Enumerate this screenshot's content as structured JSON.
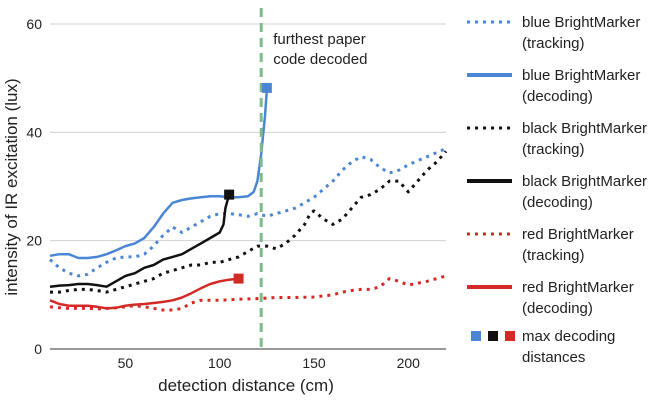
{
  "chart_data": {
    "type": "line",
    "title": "",
    "xlabel": "detection distance (cm)",
    "ylabel": "intensity of IR excitation (lux)",
    "xlim": [
      10,
      220
    ],
    "ylim": [
      0,
      60
    ],
    "x_ticks": [
      50,
      100,
      150,
      200
    ],
    "y_ticks": [
      0,
      20,
      40,
      60
    ],
    "grid": "horizontal",
    "legend_position": "right",
    "reference_line": {
      "x": 122,
      "label_lines": [
        "furthest paper",
        "code decoded"
      ],
      "color": "#7dbb8a"
    },
    "series": [
      {
        "key": "blue_tracking",
        "label_lines": [
          "blue BrightMarker",
          "(tracking)"
        ],
        "color": "#4a86d4",
        "style": "dotted",
        "points": [
          [
            10,
            16.5
          ],
          [
            15,
            15
          ],
          [
            20,
            14
          ],
          [
            25,
            13.5
          ],
          [
            30,
            13.8
          ],
          [
            35,
            15
          ],
          [
            40,
            16
          ],
          [
            45,
            16.8
          ],
          [
            50,
            17
          ],
          [
            55,
            17
          ],
          [
            60,
            17.5
          ],
          [
            65,
            19
          ],
          [
            70,
            21
          ],
          [
            75,
            22.5
          ],
          [
            80,
            21.5
          ],
          [
            85,
            22.5
          ],
          [
            90,
            23.5
          ],
          [
            95,
            24.5
          ],
          [
            100,
            25
          ],
          [
            105,
            25
          ],
          [
            110,
            24.8
          ],
          [
            115,
            24.5
          ],
          [
            120,
            25
          ],
          [
            125,
            24.5
          ],
          [
            130,
            25
          ],
          [
            135,
            25.5
          ],
          [
            140,
            26
          ],
          [
            145,
            27
          ],
          [
            150,
            28
          ],
          [
            155,
            29.5
          ],
          [
            160,
            31
          ],
          [
            165,
            33
          ],
          [
            170,
            34.5
          ],
          [
            175,
            35.5
          ],
          [
            180,
            35
          ],
          [
            185,
            33.5
          ],
          [
            190,
            32.5
          ],
          [
            195,
            33
          ],
          [
            200,
            34
          ],
          [
            210,
            35.5
          ],
          [
            220,
            37
          ]
        ]
      },
      {
        "key": "blue_decoding",
        "label_lines": [
          "blue BrightMarker",
          "(decoding)"
        ],
        "color": "#4a86d4",
        "style": "solid",
        "points": [
          [
            10,
            17.2
          ],
          [
            15,
            17.5
          ],
          [
            20,
            17.5
          ],
          [
            25,
            16.8
          ],
          [
            30,
            16.8
          ],
          [
            35,
            17
          ],
          [
            40,
            17.5
          ],
          [
            45,
            18.2
          ],
          [
            50,
            19
          ],
          [
            55,
            19.5
          ],
          [
            60,
            20.5
          ],
          [
            65,
            22.5
          ],
          [
            70,
            25
          ],
          [
            75,
            27
          ],
          [
            80,
            27.5
          ],
          [
            85,
            27.8
          ],
          [
            90,
            28
          ],
          [
            95,
            28.2
          ],
          [
            100,
            28.2
          ],
          [
            105,
            28
          ],
          [
            110,
            28
          ],
          [
            115,
            28.2
          ],
          [
            118,
            29
          ],
          [
            120,
            31
          ],
          [
            122,
            36
          ],
          [
            124,
            43
          ],
          [
            125,
            48
          ]
        ]
      },
      {
        "key": "black_tracking",
        "label_lines": [
          "black BrightMarker",
          "(tracking)"
        ],
        "color": "#111111",
        "style": "dotted",
        "points": [
          [
            10,
            10.5
          ],
          [
            15,
            10.5
          ],
          [
            20,
            10.8
          ],
          [
            25,
            11
          ],
          [
            30,
            11
          ],
          [
            35,
            10.8
          ],
          [
            40,
            10.5
          ],
          [
            45,
            11
          ],
          [
            50,
            11.5
          ],
          [
            55,
            12
          ],
          [
            60,
            12.5
          ],
          [
            65,
            13
          ],
          [
            70,
            14
          ],
          [
            75,
            14.5
          ],
          [
            80,
            15
          ],
          [
            85,
            15.5
          ],
          [
            90,
            15.5
          ],
          [
            95,
            16
          ],
          [
            100,
            16
          ],
          [
            105,
            16.5
          ],
          [
            110,
            17
          ],
          [
            115,
            18
          ],
          [
            120,
            19
          ],
          [
            125,
            19
          ],
          [
            130,
            18.5
          ],
          [
            135,
            19.5
          ],
          [
            140,
            21
          ],
          [
            145,
            23
          ],
          [
            148,
            25
          ],
          [
            150,
            25.5
          ],
          [
            155,
            24
          ],
          [
            160,
            23
          ],
          [
            165,
            24
          ],
          [
            170,
            26
          ],
          [
            175,
            28
          ],
          [
            180,
            28.5
          ],
          [
            185,
            29.5
          ],
          [
            190,
            31
          ],
          [
            195,
            31
          ],
          [
            200,
            29
          ],
          [
            205,
            31
          ],
          [
            210,
            33
          ],
          [
            215,
            34.5
          ],
          [
            220,
            36.5
          ]
        ]
      },
      {
        "key": "black_decoding",
        "label_lines": [
          "black BrightMarker",
          "(decoding)"
        ],
        "color": "#111111",
        "style": "solid",
        "points": [
          [
            10,
            11.5
          ],
          [
            15,
            11.7
          ],
          [
            20,
            11.8
          ],
          [
            25,
            12
          ],
          [
            30,
            12
          ],
          [
            35,
            11.8
          ],
          [
            40,
            11.5
          ],
          [
            45,
            12.5
          ],
          [
            50,
            13.5
          ],
          [
            55,
            14
          ],
          [
            60,
            15
          ],
          [
            65,
            15.5
          ],
          [
            70,
            16.5
          ],
          [
            75,
            17
          ],
          [
            80,
            17.5
          ],
          [
            85,
            18.5
          ],
          [
            90,
            19.5
          ],
          [
            95,
            20.5
          ],
          [
            100,
            21.5
          ],
          [
            102,
            23
          ],
          [
            103,
            26
          ],
          [
            105,
            28.5
          ]
        ]
      },
      {
        "key": "red_tracking",
        "label_lines": [
          "red BrightMarker",
          "(tracking)"
        ],
        "color": "#d42a26",
        "style": "dotted",
        "points": [
          [
            10,
            7.8
          ],
          [
            15,
            7.6
          ],
          [
            20,
            7.5
          ],
          [
            25,
            7.5
          ],
          [
            30,
            7.5
          ],
          [
            35,
            7.4
          ],
          [
            40,
            7.5
          ],
          [
            45,
            7.6
          ],
          [
            50,
            7.8
          ],
          [
            55,
            8
          ],
          [
            60,
            7.8
          ],
          [
            65,
            7.5
          ],
          [
            70,
            7.2
          ],
          [
            75,
            7.2
          ],
          [
            80,
            7.5
          ],
          [
            85,
            8.5
          ],
          [
            90,
            9
          ],
          [
            95,
            9
          ],
          [
            100,
            9
          ],
          [
            110,
            9.2
          ],
          [
            120,
            9.3
          ],
          [
            130,
            9.5
          ],
          [
            140,
            9.5
          ],
          [
            150,
            9.6
          ],
          [
            160,
            10
          ],
          [
            165,
            10.5
          ],
          [
            170,
            10.8
          ],
          [
            175,
            11
          ],
          [
            180,
            11
          ],
          [
            185,
            11.5
          ],
          [
            190,
            13
          ],
          [
            195,
            12.5
          ],
          [
            200,
            11.8
          ],
          [
            210,
            12.5
          ],
          [
            220,
            13.5
          ]
        ]
      },
      {
        "key": "red_decoding",
        "label_lines": [
          "red BrightMarker",
          "(decoding)"
        ],
        "color": "#d42a26",
        "style": "solid",
        "points": [
          [
            10,
            9
          ],
          [
            15,
            8.3
          ],
          [
            20,
            8
          ],
          [
            25,
            8
          ],
          [
            30,
            8
          ],
          [
            35,
            7.8
          ],
          [
            40,
            7.5
          ],
          [
            45,
            7.6
          ],
          [
            50,
            8
          ],
          [
            55,
            8.2
          ],
          [
            60,
            8.3
          ],
          [
            65,
            8.5
          ],
          [
            70,
            8.7
          ],
          [
            75,
            9
          ],
          [
            80,
            9.5
          ],
          [
            85,
            10.3
          ],
          [
            90,
            11.2
          ],
          [
            95,
            12
          ],
          [
            100,
            12.5
          ],
          [
            105,
            12.8
          ],
          [
            110,
            13
          ]
        ]
      }
    ],
    "max_decoding_markers": {
      "label_lines": [
        "max decoding",
        "distances"
      ],
      "points": [
        {
          "x": 125,
          "y": 48.2,
          "color": "#4a86d4"
        },
        {
          "x": 105,
          "y": 28.5,
          "color": "#111111"
        },
        {
          "x": 110,
          "y": 13,
          "color": "#d42a26"
        }
      ]
    }
  }
}
